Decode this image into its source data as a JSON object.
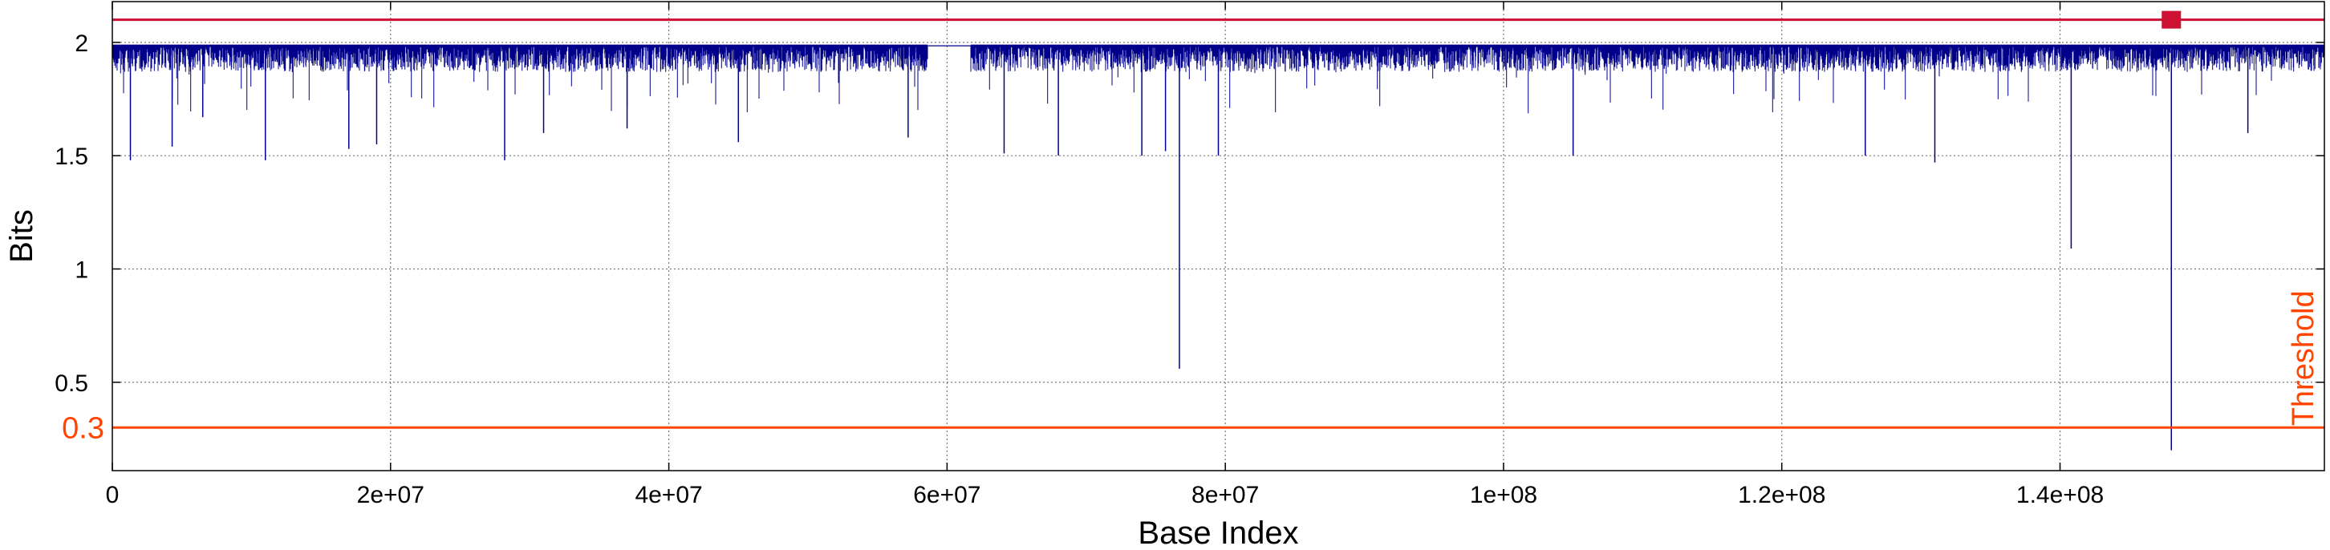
{
  "chart_data": {
    "type": "line",
    "xlabel": "Base Index",
    "ylabel": "Bits",
    "xlim": [
      0,
      159000000
    ],
    "ylim": [
      0.11,
      2.18
    ],
    "grid": true,
    "x_ticks": [
      {
        "value": 0,
        "label": "0"
      },
      {
        "value": 20000000,
        "label": "2e+07"
      },
      {
        "value": 40000000,
        "label": "4e+07"
      },
      {
        "value": 60000000,
        "label": "6e+07"
      },
      {
        "value": 80000000,
        "label": "8e+07"
      },
      {
        "value": 100000000,
        "label": "1e+08"
      },
      {
        "value": 120000000,
        "label": "1.2e+08"
      },
      {
        "value": 140000000,
        "label": "1.4e+08"
      }
    ],
    "y_ticks": [
      {
        "value": 0.5,
        "label": "0.5"
      },
      {
        "value": 1,
        "label": "1"
      },
      {
        "value": 1.5,
        "label": "1.5"
      },
      {
        "value": 2,
        "label": "2"
      }
    ],
    "series": [
      {
        "color": "#00008b",
        "baseline": 1.985,
        "band_low": 1.88,
        "gaps": [
          [
            58600000,
            61700000
          ]
        ],
        "dips": [
          {
            "x": 1300000,
            "y": 1.48
          },
          {
            "x": 4300000,
            "y": 1.54
          },
          {
            "x": 6500000,
            "y": 1.67
          },
          {
            "x": 11000000,
            "y": 1.48
          },
          {
            "x": 17000000,
            "y": 1.53
          },
          {
            "x": 19000000,
            "y": 1.55
          },
          {
            "x": 28200000,
            "y": 1.48
          },
          {
            "x": 31000000,
            "y": 1.6
          },
          {
            "x": 37000000,
            "y": 1.62
          },
          {
            "x": 45000000,
            "y": 1.56
          },
          {
            "x": 57200000,
            "y": 1.58
          },
          {
            "x": 64100000,
            "y": 1.51
          },
          {
            "x": 68000000,
            "y": 1.5
          },
          {
            "x": 74000000,
            "y": 1.5
          },
          {
            "x": 75700000,
            "y": 1.52
          },
          {
            "x": 76700000,
            "y": 0.56
          },
          {
            "x": 79500000,
            "y": 1.5
          },
          {
            "x": 105000000,
            "y": 1.5
          },
          {
            "x": 126000000,
            "y": 1.5
          },
          {
            "x": 131000000,
            "y": 1.47
          },
          {
            "x": 140800000,
            "y": 1.09
          },
          {
            "x": 148000000,
            "y": 0.2
          },
          {
            "x": 153500000,
            "y": 1.6
          }
        ]
      }
    ],
    "reference_lines": [
      {
        "y": 2.1,
        "color": "#cc1133"
      },
      {
        "y": 0.3,
        "label": "Threshold",
        "axis_label": "0.3",
        "color": "#ff4500"
      }
    ],
    "markers": [
      {
        "x": 148000000,
        "y": 2.1,
        "shape": "square",
        "color": "#cc1133"
      }
    ]
  }
}
